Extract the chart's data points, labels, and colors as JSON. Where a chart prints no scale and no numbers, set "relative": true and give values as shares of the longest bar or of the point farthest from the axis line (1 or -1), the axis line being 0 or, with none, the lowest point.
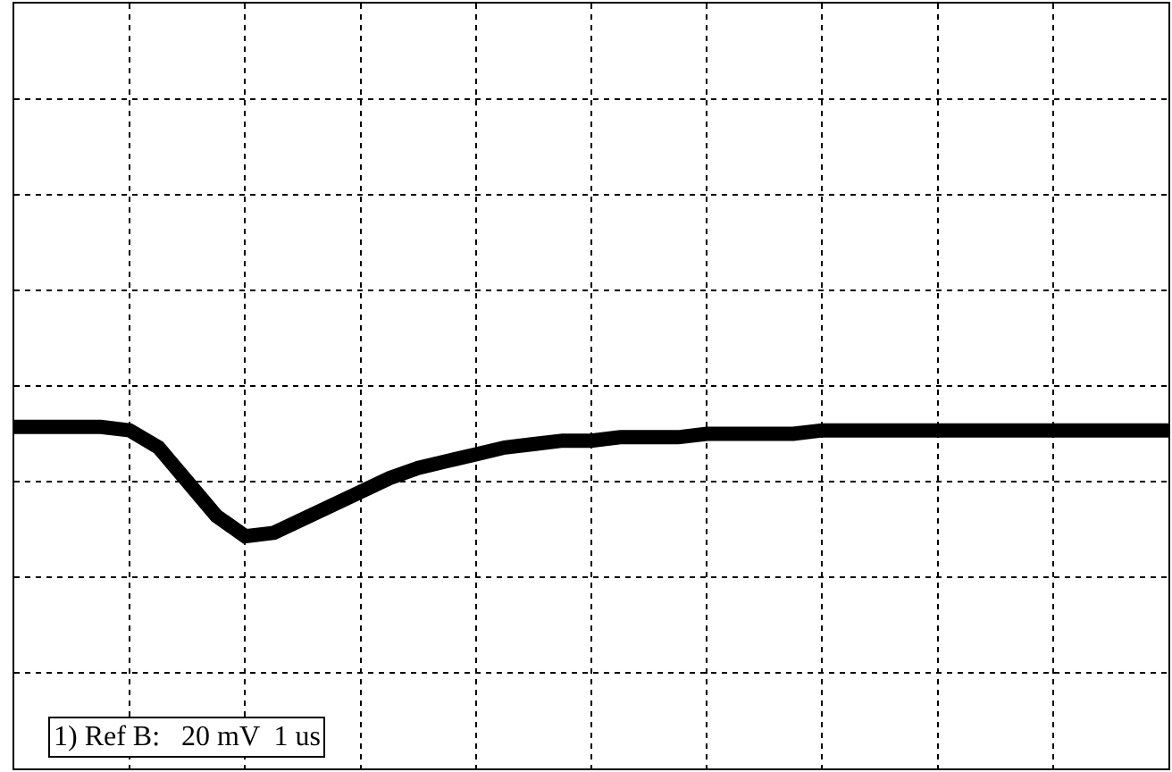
{
  "chart_data": {
    "type": "line",
    "relative": true,
    "grid": true,
    "categories": [
      null,
      null,
      null,
      null,
      null,
      null,
      null,
      null,
      null,
      null,
      null,
      null,
      null,
      null,
      null,
      null,
      null,
      null,
      null,
      null,
      null,
      null,
      null,
      null,
      null,
      null,
      null,
      null,
      null,
      null,
      null,
      null,
      null,
      null,
      null,
      null,
      null,
      null,
      null,
      null,
      null
    ],
    "series": [
      {
        "color": "#000000",
        "values": [
          1,
          1,
          1,
          1,
          0.99,
          0.94,
          0.84,
          0.74,
          0.68,
          0.69,
          0.73,
          0.77,
          0.81,
          0.85,
          0.88,
          0.9,
          0.92,
          0.94,
          0.95,
          0.96,
          0.96,
          0.97,
          0.97,
          0.97,
          0.98,
          0.98,
          0.98,
          0.98,
          0.99,
          0.99,
          0.99,
          0.99,
          0.99,
          0.99,
          0.99,
          0.99,
          0.99,
          0.99,
          0.99,
          0.99,
          0.99
        ]
      }
    ],
    "annotations": [
      "1) Ref B:   20 mV  1 us"
    ]
  }
}
